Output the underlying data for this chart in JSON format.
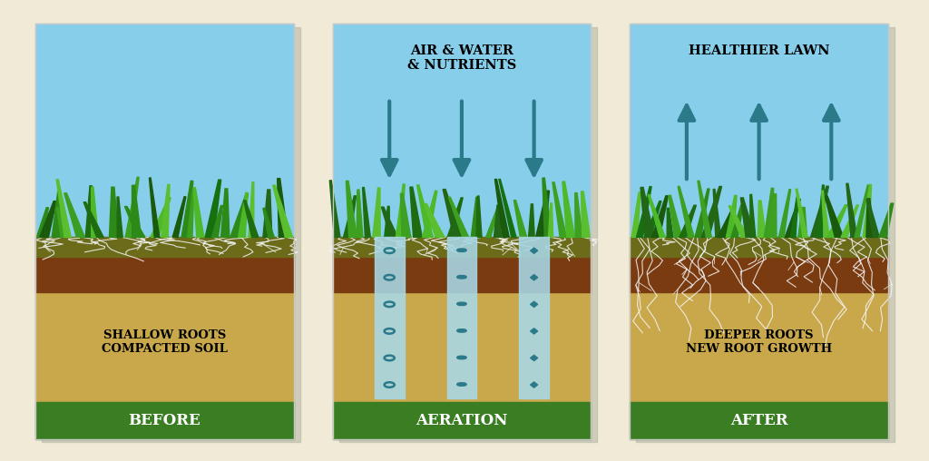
{
  "bg_color": "#f0ead6",
  "sky_color": "#87ceeb",
  "sand_color": "#c9a84c",
  "dark_soil_color": "#7a3b10",
  "topsoil_color": "#6b6b1a",
  "green_banner_color": "#3a7d22",
  "arrow_color": "#2b7a8a",
  "tube_color": "#a8d8e8",
  "symbol_color": "#2b7a8a",
  "root_color": "#f5f5f5",
  "panel_border_color": "#c8c8c8",
  "shadow_color": "#b0b0a0",
  "panels": [
    {
      "label": "BEFORE",
      "top_text": "",
      "bottom_text": "SHALLOW ROOTS\nCOMPACTED SOIL",
      "arrows_down": false,
      "arrows_up": false,
      "has_aeration_tubes": false,
      "root_depth": "shallow"
    },
    {
      "label": "AERATION",
      "top_text": "AIR & WATER\n& NUTRIENTS",
      "bottom_text": "",
      "arrows_down": true,
      "arrows_up": false,
      "has_aeration_tubes": true,
      "root_depth": "shallow"
    },
    {
      "label": "AFTER",
      "top_text": "HEALTHIER LAWN",
      "bottom_text": "DEEPER ROOTS\nNEW ROOT GROWTH",
      "arrows_down": false,
      "arrows_up": true,
      "has_aeration_tubes": false,
      "root_depth": "deep"
    }
  ]
}
